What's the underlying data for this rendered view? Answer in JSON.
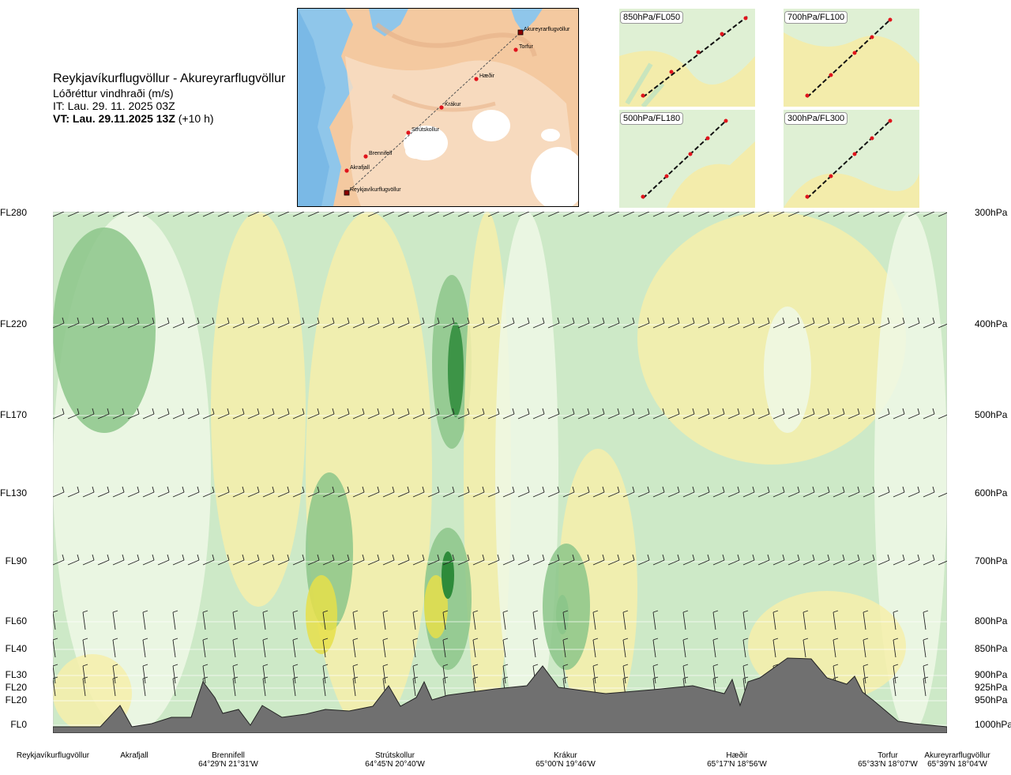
{
  "header": {
    "route": "Reykjavíkurflugvöllur - Akureyrarflugvöllur",
    "parameter": "Lóðréttur vindhraði (m/s)",
    "issue_time": "IT: Lau. 29. 11. 2025 03Z",
    "valid_time_bold": "VT: Lau. 29.11.2025 13Z",
    "valid_time_offset": " (+10 h)"
  },
  "map": {
    "waypoints": [
      {
        "label": "Akureyrarflugvöllur"
      },
      {
        "label": "Torfur"
      },
      {
        "label": "Hæðir"
      },
      {
        "label": "Krákur"
      },
      {
        "label": "Strútskollur"
      },
      {
        "label": "Brennifell"
      },
      {
        "label": "Akrafjall"
      },
      {
        "label": "Reykjavíkurflugvöllur"
      }
    ]
  },
  "thumbnails": [
    {
      "label": "850hPa/FL050"
    },
    {
      "label": "700hPa/FL100"
    },
    {
      "label": "500hPa/FL180"
    },
    {
      "label": "300hPa/FL300"
    }
  ],
  "flight_levels": [
    "FL280",
    "FL220",
    "FL170",
    "FL130",
    "FL90",
    "FL60",
    "FL40",
    "FL30",
    "FL20",
    "FL20",
    "FL0"
  ],
  "pressure_levels": [
    "300hPa",
    "400hPa",
    "500hPa",
    "600hPa",
    "700hPa",
    "800hPa",
    "850hPa",
    "900hPa",
    "925hPa",
    "950hPa",
    "1000hPa"
  ],
  "bottom_points": [
    {
      "name": "Reykjavíkurflugvöllur",
      "coord": ""
    },
    {
      "name": "Akrafjall",
      "coord": ""
    },
    {
      "name": "Brennifell",
      "coord": "64°29'N 21°31'W"
    },
    {
      "name": "Strútskollur",
      "coord": "64°45'N 20°40'W"
    },
    {
      "name": "Krákur",
      "coord": "65°00'N 19°46'W"
    },
    {
      "name": "Hæðir",
      "coord": "65°17'N 18°56'W"
    },
    {
      "name": "Torfur",
      "coord": "65°33'N 18°07'W"
    },
    {
      "name": "Akureyrarflugvöllur",
      "coord": "65°39'N 18°04'W"
    }
  ],
  "colors": {
    "strong_up": "#2e8b3a",
    "up": "#8cc68a",
    "weak_up": "#cde9c7",
    "near_zero": "#eef8e6",
    "weak_down": "#f6eeaa",
    "down": "#e6df4a",
    "terrain": "#707070",
    "route_points": "#e0141c"
  }
}
